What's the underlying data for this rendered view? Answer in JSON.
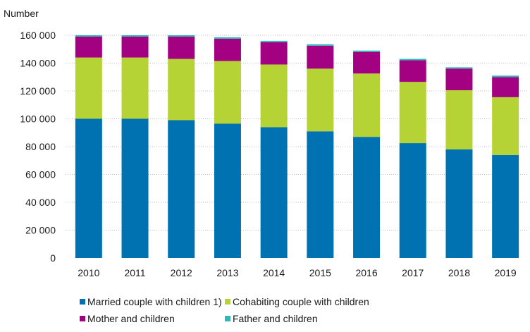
{
  "chart_data": {
    "type": "bar",
    "stacked": true,
    "ylabel": "Number",
    "ylim": [
      0,
      160000
    ],
    "yticks": [
      0,
      20000,
      40000,
      60000,
      80000,
      100000,
      120000,
      140000,
      160000
    ],
    "ytick_labels": [
      "0",
      "20 000",
      "40 000",
      "60 000",
      "80 000",
      "100 000",
      "120 000",
      "140 000",
      "160 000"
    ],
    "grid": "horizontal",
    "legend_position": "bottom",
    "categories": [
      "2010",
      "2011",
      "2012",
      "2013",
      "2014",
      "2015",
      "2016",
      "2017",
      "2018",
      "2019"
    ],
    "series": [
      {
        "name": "Married couple with children 1)",
        "color": "#0072b2",
        "values": [
          100000,
          100000,
          99000,
          96500,
          94000,
          91000,
          87000,
          82500,
          78000,
          74000
        ]
      },
      {
        "name": "Cohabiting couple with children",
        "color": "#b5d334",
        "values": [
          44000,
          44000,
          44000,
          45000,
          45000,
          45000,
          45500,
          44000,
          42500,
          41500
        ]
      },
      {
        "name": "Mother and children",
        "color": "#a40082",
        "values": [
          15000,
          15000,
          16000,
          16000,
          16000,
          16500,
          15500,
          15500,
          15500,
          14500
        ]
      },
      {
        "name": "Father and children",
        "color": "#2eb8b8",
        "values": [
          1000,
          1000,
          1000,
          1000,
          1000,
          1000,
          1000,
          1000,
          1000,
          1000
        ]
      }
    ]
  }
}
